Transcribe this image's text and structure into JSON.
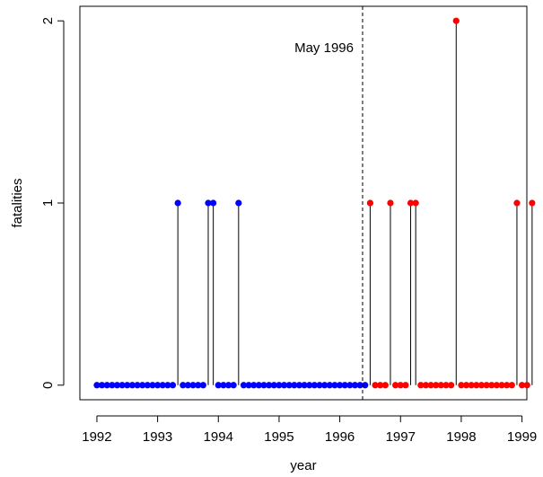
{
  "chart_data": {
    "type": "scatter",
    "style": "spikes",
    "xlabel": "year",
    "ylabel": "fatalities",
    "xlim": [
      1991.72,
      1999.08
    ],
    "ylim": [
      -0.08,
      2.08
    ],
    "x_ticks": [
      1992,
      1993,
      1994,
      1995,
      1996,
      1997,
      1998,
      1999
    ],
    "y_ticks": [
      0,
      1,
      2
    ],
    "grid": false,
    "legend": "none",
    "annotation": {
      "text": "May 1996",
      "x": 1996.375
    },
    "colors": {
      "before": "#0000ff",
      "after": "#ff0000",
      "spike": "#000000"
    },
    "series": [
      {
        "color_key": "before",
        "start": 1992.0,
        "values": [
          0,
          0,
          0,
          0,
          0,
          0,
          0,
          0,
          0,
          0,
          0,
          0,
          0,
          0,
          0,
          0,
          1,
          0,
          0,
          0,
          0,
          0,
          1,
          1,
          0,
          0,
          0,
          0,
          1,
          0,
          0,
          0,
          0,
          0,
          0,
          0,
          0,
          0,
          0,
          0,
          0,
          0,
          0,
          0,
          0,
          0,
          0,
          0,
          0,
          0,
          0,
          0,
          0,
          0
        ]
      },
      {
        "color_key": "after",
        "start": 1996.5,
        "values": [
          1,
          0,
          0,
          0,
          1,
          0,
          0,
          0,
          1,
          1,
          0,
          0,
          0,
          0,
          0,
          0,
          0,
          2,
          0,
          0,
          0,
          0,
          0,
          0,
          0,
          0,
          0,
          0,
          0,
          1,
          0,
          0,
          1
        ]
      }
    ]
  }
}
